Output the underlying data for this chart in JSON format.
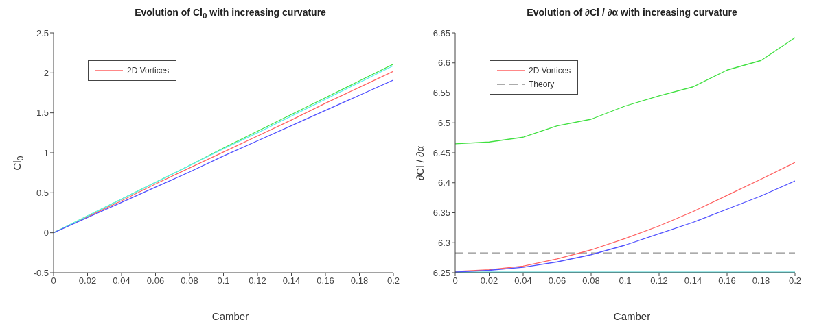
{
  "chart_data": [
    {
      "type": "line",
      "title": "Evolution of Cl$_{0}$ with increasing curvature",
      "xlabel": "Camber",
      "ylabel": "Cl$_{0}$",
      "x": [
        0,
        0.02,
        0.04,
        0.06,
        0.08,
        0.1,
        0.12,
        0.14,
        0.16,
        0.18,
        0.2
      ],
      "series": [
        {
          "name": "2D Vortices",
          "color": "#ff6060",
          "values": [
            0,
            0.2,
            0.4,
            0.61,
            0.81,
            1.01,
            1.21,
            1.41,
            1.62,
            1.82,
            2.02
          ]
        },
        {
          "color": "#40e040",
          "values": [
            0,
            0.21,
            0.42,
            0.63,
            0.84,
            1.06,
            1.27,
            1.48,
            1.69,
            1.9,
            2.11
          ]
        },
        {
          "color": "#60f0f0",
          "values": [
            0,
            0.21,
            0.42,
            0.63,
            0.84,
            1.05,
            1.25,
            1.46,
            1.67,
            1.88,
            2.09
          ]
        },
        {
          "color": "#5050ff",
          "values": [
            0,
            0.19,
            0.38,
            0.57,
            0.76,
            0.96,
            1.15,
            1.34,
            1.53,
            1.72,
            1.91
          ]
        }
      ],
      "xlim": [
        0,
        0.2
      ],
      "xticks": [
        0,
        0.02,
        0.04,
        0.06,
        0.08,
        0.1,
        0.12,
        0.14,
        0.16,
        0.18,
        0.2
      ],
      "ylim": [
        -0.5,
        2.5
      ],
      "yticks": [
        -0.5,
        0,
        0.5,
        1,
        1.5,
        2,
        2.5
      ],
      "legend": "top left",
      "line_style": "solid",
      "marker": "none"
    },
    {
      "type": "line",
      "title": "Evolution of ∂Cl / ∂α with increasing curvature",
      "xlabel": "Camber",
      "ylabel": "∂Cl / ∂α",
      "x": [
        0,
        0.02,
        0.04,
        0.06,
        0.08,
        0.1,
        0.12,
        0.14,
        0.16,
        0.18,
        0.2
      ],
      "series": [
        {
          "name": "2D Vortices",
          "color": "#ff6060",
          "values": [
            6.252,
            6.255,
            6.261,
            6.273,
            6.288,
            6.307,
            6.328,
            6.352,
            6.379,
            6.406,
            6.434
          ]
        },
        {
          "color": "#40e040",
          "values": [
            6.465,
            6.468,
            6.476,
            6.495,
            6.506,
            6.528,
            6.545,
            6.56,
            6.588,
            6.604,
            6.642
          ]
        },
        {
          "color": "#40d0d0",
          "values": [
            6.251,
            6.251,
            6.251,
            6.251,
            6.251,
            6.251,
            6.251,
            6.251,
            6.251,
            6.251,
            6.251
          ]
        },
        {
          "color": "#5050ff",
          "values": [
            6.251,
            6.254,
            6.259,
            6.268,
            6.28,
            6.296,
            6.315,
            6.334,
            6.356,
            6.378,
            6.403
          ]
        }
      ],
      "ref_lines": [
        {
          "axis": "y",
          "value": 6.283,
          "label": "Theory",
          "color": "#909090",
          "line_style": "dashed"
        }
      ],
      "xlim": [
        0,
        0.2
      ],
      "xticks": [
        0,
        0.02,
        0.04,
        0.06,
        0.08,
        0.1,
        0.12,
        0.14,
        0.16,
        0.18,
        0.2
      ],
      "ylim": [
        6.25,
        6.65
      ],
      "yticks": [
        6.25,
        6.3,
        6.35,
        6.4,
        6.45,
        6.5,
        6.55,
        6.6,
        6.65
      ],
      "legend": "top left",
      "line_style": "solid",
      "marker": "none"
    }
  ]
}
